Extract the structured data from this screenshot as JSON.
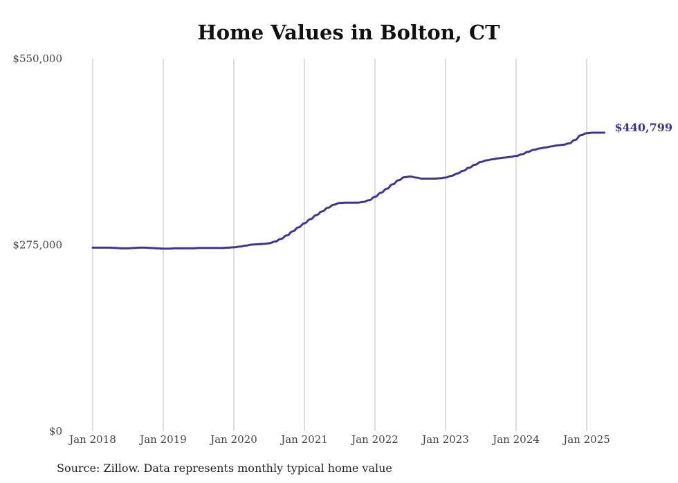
{
  "title": "Home Values in Bolton, CT",
  "source": "Source: Zillow. Data represents monthly typical home value",
  "colors": {
    "line": "#3d3591",
    "grid": "#bdbdbd",
    "text": "#444444"
  },
  "chart_data": {
    "type": "line",
    "title": "Home Values in Bolton, CT",
    "xlabel": "",
    "ylabel": "",
    "grid": "vertical",
    "ylim": [
      0,
      550000
    ],
    "y_ticks": [
      0,
      275000,
      550000
    ],
    "y_tick_labels": [
      "$0",
      "$275,000",
      "$550,000"
    ],
    "x_ticks": [
      "2018-01",
      "2019-01",
      "2020-01",
      "2021-01",
      "2022-01",
      "2023-01",
      "2024-01",
      "2025-01"
    ],
    "x_tick_labels": [
      "Jan 2018",
      "Jan 2019",
      "Jan 2020",
      "Jan 2021",
      "Jan 2022",
      "Jan 2023",
      "Jan 2024",
      "Jan 2025"
    ],
    "end_label": "$440,799",
    "series": [
      {
        "x": [
          "2018-01",
          "2018-02",
          "2018-03",
          "2018-04",
          "2018-05",
          "2018-06",
          "2018-07",
          "2018-08",
          "2018-09",
          "2018-10",
          "2018-11",
          "2018-12",
          "2019-01",
          "2019-02",
          "2019-03",
          "2019-04",
          "2019-05",
          "2019-06",
          "2019-07",
          "2019-08",
          "2019-09",
          "2019-10",
          "2019-11",
          "2019-12",
          "2020-01",
          "2020-02",
          "2020-03",
          "2020-04",
          "2020-05",
          "2020-06",
          "2020-07",
          "2020-08",
          "2020-09",
          "2020-10",
          "2020-11",
          "2020-12",
          "2021-01",
          "2021-02",
          "2021-03",
          "2021-04",
          "2021-05",
          "2021-06",
          "2021-07",
          "2021-08",
          "2021-09",
          "2021-10",
          "2021-11",
          "2021-12",
          "2022-01",
          "2022-02",
          "2022-03",
          "2022-04",
          "2022-05",
          "2022-06",
          "2022-07",
          "2022-08",
          "2022-09",
          "2022-10",
          "2022-11",
          "2022-12",
          "2023-01",
          "2023-02",
          "2023-03",
          "2023-04",
          "2023-05",
          "2023-06",
          "2023-07",
          "2023-08",
          "2023-09",
          "2023-10",
          "2023-11",
          "2023-12",
          "2024-01",
          "2024-02",
          "2024-03",
          "2024-04",
          "2024-05",
          "2024-06",
          "2024-07",
          "2024-08",
          "2024-09",
          "2024-10",
          "2024-11",
          "2024-12",
          "2025-01",
          "2025-02",
          "2025-03",
          "2025-04"
        ],
        "values": [
          271000,
          271000,
          271000,
          271000,
          270500,
          270000,
          270000,
          270500,
          271000,
          271000,
          270500,
          270000,
          269500,
          269500,
          270000,
          270000,
          270000,
          270000,
          270500,
          270500,
          270500,
          270500,
          270500,
          271000,
          271500,
          272500,
          274000,
          275500,
          276000,
          276500,
          277500,
          280000,
          284000,
          289000,
          295000,
          301000,
          307000,
          313000,
          319000,
          324500,
          330000,
          334500,
          337000,
          337500,
          337500,
          337500,
          338500,
          341000,
          346000,
          352000,
          358000,
          364500,
          370500,
          375000,
          376000,
          374500,
          373000,
          373000,
          373000,
          373500,
          374500,
          377000,
          380500,
          384500,
          389000,
          393500,
          397500,
          400000,
          401500,
          403000,
          404000,
          405000,
          406500,
          409000,
          412500,
          415500,
          417500,
          419000,
          420500,
          422000,
          423000,
          425000,
          430000,
          437000,
          440000,
          440799,
          440799,
          440799
        ]
      }
    ]
  }
}
